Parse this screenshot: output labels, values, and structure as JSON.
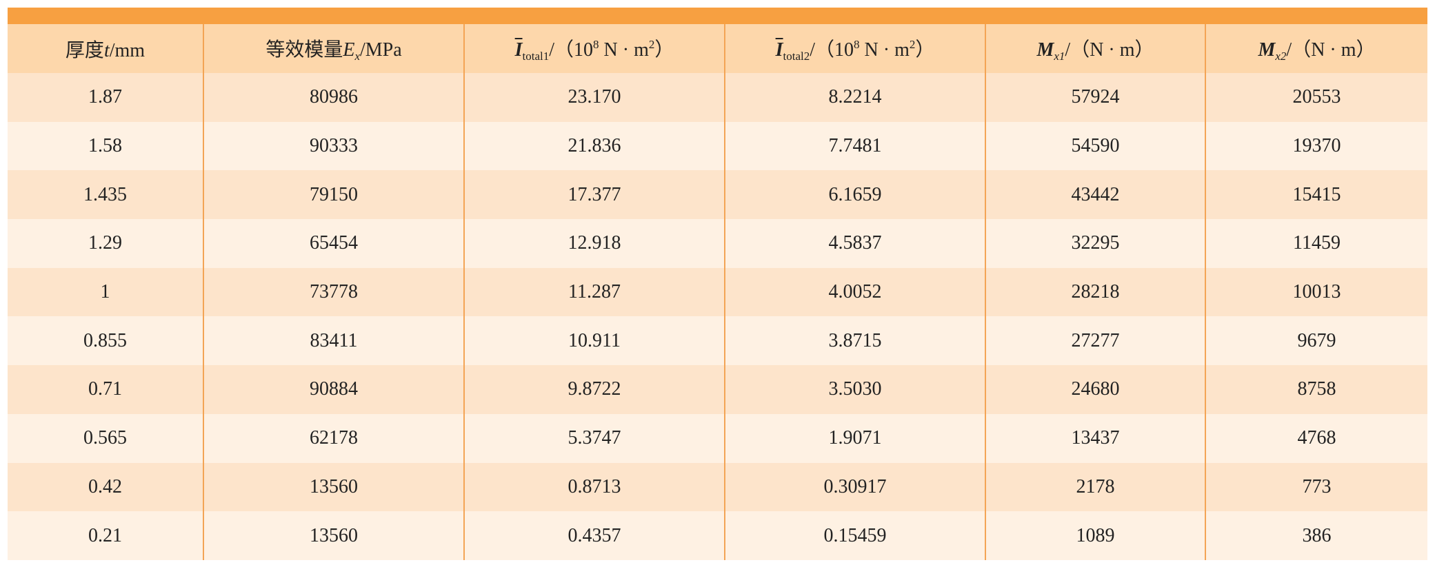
{
  "table": {
    "header": [
      [
        "厚度",
        "t",
        "/mm"
      ],
      [
        "等效模量",
        "E",
        "x",
        "/MPa"
      ],
      [
        "I",
        "total1",
        "/（10",
        "8",
        " N · m",
        "2",
        "）"
      ],
      [
        "I",
        "total2",
        "/（10",
        "8",
        " N · m",
        "2",
        "）"
      ],
      [
        "M",
        "x1",
        "/（N · m）"
      ],
      [
        "M",
        "x2",
        "/（N · m）"
      ]
    ],
    "rows": [
      [
        "1.87",
        "80986",
        "23.170",
        "8.2214",
        "57924",
        "20553"
      ],
      [
        "1.58",
        "90333",
        "21.836",
        "7.7481",
        "54590",
        "19370"
      ],
      [
        "1.435",
        "79150",
        "17.377",
        "6.1659",
        "43442",
        "15415"
      ],
      [
        "1.29",
        "65454",
        "12.918",
        "4.5837",
        "32295",
        "11459"
      ],
      [
        "1",
        "73778",
        "11.287",
        "4.0052",
        "28218",
        "10013"
      ],
      [
        "0.855",
        "83411",
        "10.911",
        "3.8715",
        "27277",
        "9679"
      ],
      [
        "0.71",
        "90884",
        "9.8722",
        "3.5030",
        "24680",
        "8758"
      ],
      [
        "0.565",
        "62178",
        "5.3747",
        "1.9071",
        "13437",
        "4768"
      ],
      [
        "0.42",
        "13560",
        "0.8713",
        "0.30917",
        "2178",
        "773"
      ],
      [
        "0.21",
        "13560",
        "0.4357",
        "0.15459",
        "1089",
        "386"
      ]
    ]
  }
}
